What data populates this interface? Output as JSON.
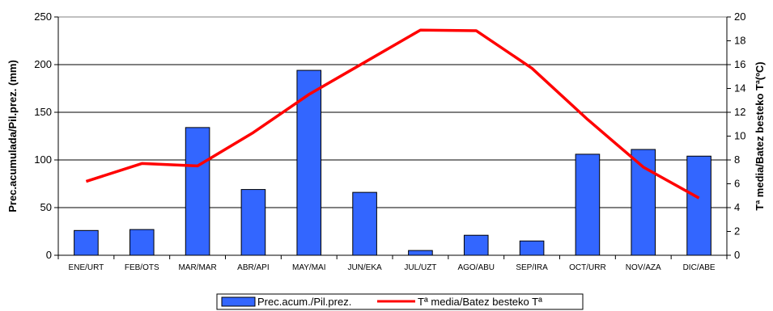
{
  "chart_data": {
    "type": "bar+line",
    "categories": [
      "ENE/URT",
      "FEB/OTS",
      "MAR/MAR",
      "ABR/API",
      "MAY/MAI",
      "JUN/EKA",
      "JUL/UZT",
      "AGO/ABU",
      "SEP/IRA",
      "OCT/URR",
      "NOV/AZA",
      "DIC/ABE"
    ],
    "series": [
      {
        "name": "Prec.acum./Pil.prez.",
        "type": "bar",
        "axis": "left",
        "color": "#3366ff",
        "values": [
          26,
          27,
          134,
          69,
          194,
          66,
          5,
          21,
          15,
          106,
          111,
          104
        ]
      },
      {
        "name": "Tª media/Batez besteko Tª",
        "type": "line",
        "axis": "right",
        "color": "#ff0000",
        "values": [
          6.2,
          7.7,
          7.5,
          10.3,
          13.5,
          16.2,
          18.9,
          18.85,
          15.7,
          11.4,
          7.4,
          4.8
        ]
      }
    ],
    "ylabel": "Prec.acumulada/Pil.prez. (mm)",
    "y2label": "Tª media/Batez besteko Tª(ºC)",
    "ylim": [
      0,
      250
    ],
    "yticks": [
      0,
      50,
      100,
      150,
      200,
      250
    ],
    "y2lim": [
      0,
      20
    ],
    "y2ticks": [
      0,
      2,
      4,
      6,
      8,
      10,
      12,
      14,
      16,
      18,
      20
    ],
    "grid": true,
    "legend_position": "bottom"
  }
}
